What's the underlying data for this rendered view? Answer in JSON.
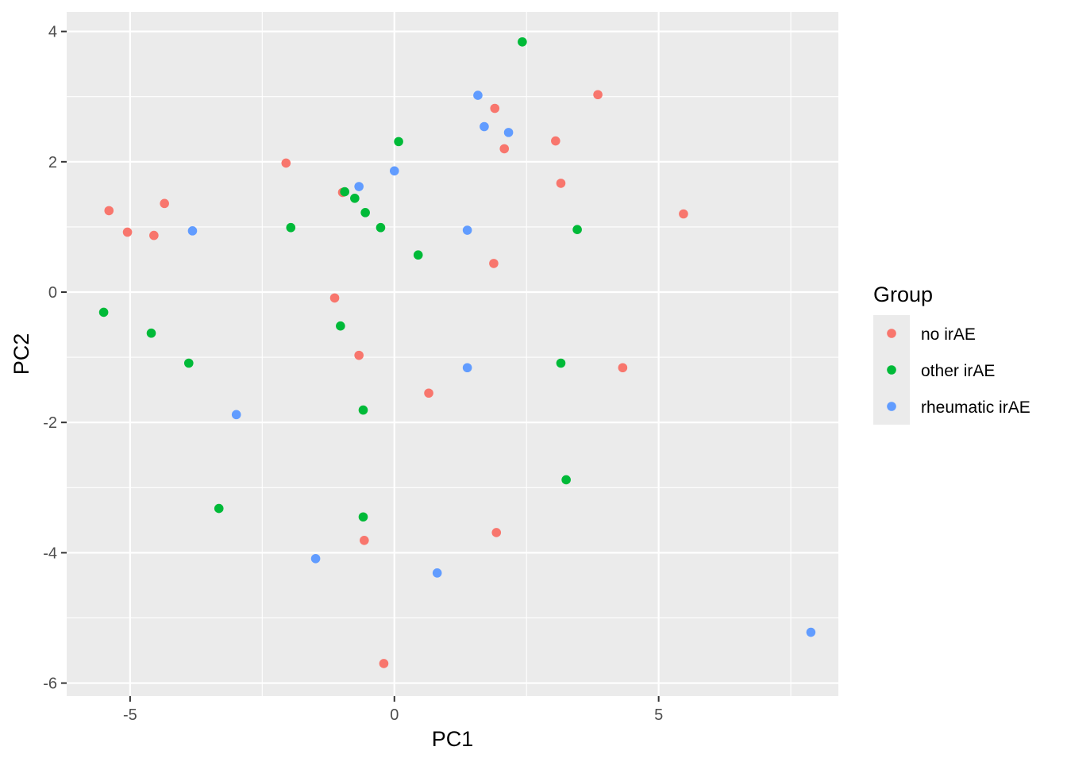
{
  "chart_data": {
    "type": "scatter",
    "title": "",
    "xlabel": "PC1",
    "ylabel": "PC2",
    "xlim": [
      -6.2,
      8.4
    ],
    "ylim": [
      -6.2,
      4.3
    ],
    "x_ticks": [
      -5,
      0,
      5
    ],
    "x_tick_labels": [
      "-5",
      "0",
      "5"
    ],
    "y_ticks": [
      -6,
      -4,
      -2,
      0,
      2,
      4
    ],
    "y_tick_labels": [
      "-6",
      "-4",
      "-2",
      "0",
      "2",
      "4"
    ],
    "grid": true,
    "legend": {
      "title": "Group",
      "position": "right"
    },
    "series": [
      {
        "name": "no irAE",
        "color": "#F8766D",
        "points": [
          [
            -5.4,
            1.25
          ],
          [
            -5.05,
            0.92
          ],
          [
            -4.55,
            0.87
          ],
          [
            -4.35,
            1.36
          ],
          [
            -2.05,
            1.98
          ],
          [
            -0.98,
            1.53
          ],
          [
            -1.13,
            -0.09
          ],
          [
            -0.67,
            -0.97
          ],
          [
            0.65,
            -1.55
          ],
          [
            -0.57,
            -3.81
          ],
          [
            -0.2,
            -5.7
          ],
          [
            1.9,
            2.82
          ],
          [
            2.08,
            2.2
          ],
          [
            1.88,
            0.44
          ],
          [
            3.05,
            2.32
          ],
          [
            3.15,
            1.67
          ],
          [
            3.85,
            3.03
          ],
          [
            5.47,
            1.2
          ],
          [
            4.32,
            -1.16
          ],
          [
            1.93,
            -3.69
          ]
        ]
      },
      {
        "name": "other irAE",
        "color": "#00BA38",
        "points": [
          [
            -5.5,
            -0.31
          ],
          [
            -4.6,
            -0.63
          ],
          [
            -3.89,
            -1.09
          ],
          [
            -3.32,
            -3.32
          ],
          [
            -1.96,
            0.99
          ],
          [
            -0.94,
            1.54
          ],
          [
            -0.75,
            1.44
          ],
          [
            -0.55,
            1.22
          ],
          [
            -0.26,
            0.99
          ],
          [
            0.08,
            2.31
          ],
          [
            0.45,
            0.57
          ],
          [
            -1.02,
            -0.52
          ],
          [
            -0.59,
            -1.81
          ],
          [
            -0.59,
            -3.45
          ],
          [
            2.42,
            3.84
          ],
          [
            3.46,
            0.96
          ],
          [
            3.15,
            -1.09
          ],
          [
            3.25,
            -2.88
          ]
        ]
      },
      {
        "name": "rheumatic irAE",
        "color": "#619CFF",
        "points": [
          [
            -3.82,
            0.94
          ],
          [
            -2.99,
            -1.88
          ],
          [
            -0.67,
            1.62
          ],
          [
            0.0,
            1.86
          ],
          [
            1.58,
            3.02
          ],
          [
            1.7,
            2.54
          ],
          [
            2.16,
            2.45
          ],
          [
            1.38,
            0.95
          ],
          [
            1.38,
            -1.16
          ],
          [
            -1.49,
            -4.09
          ],
          [
            0.81,
            -4.31
          ],
          [
            7.88,
            -5.22
          ]
        ]
      }
    ]
  }
}
